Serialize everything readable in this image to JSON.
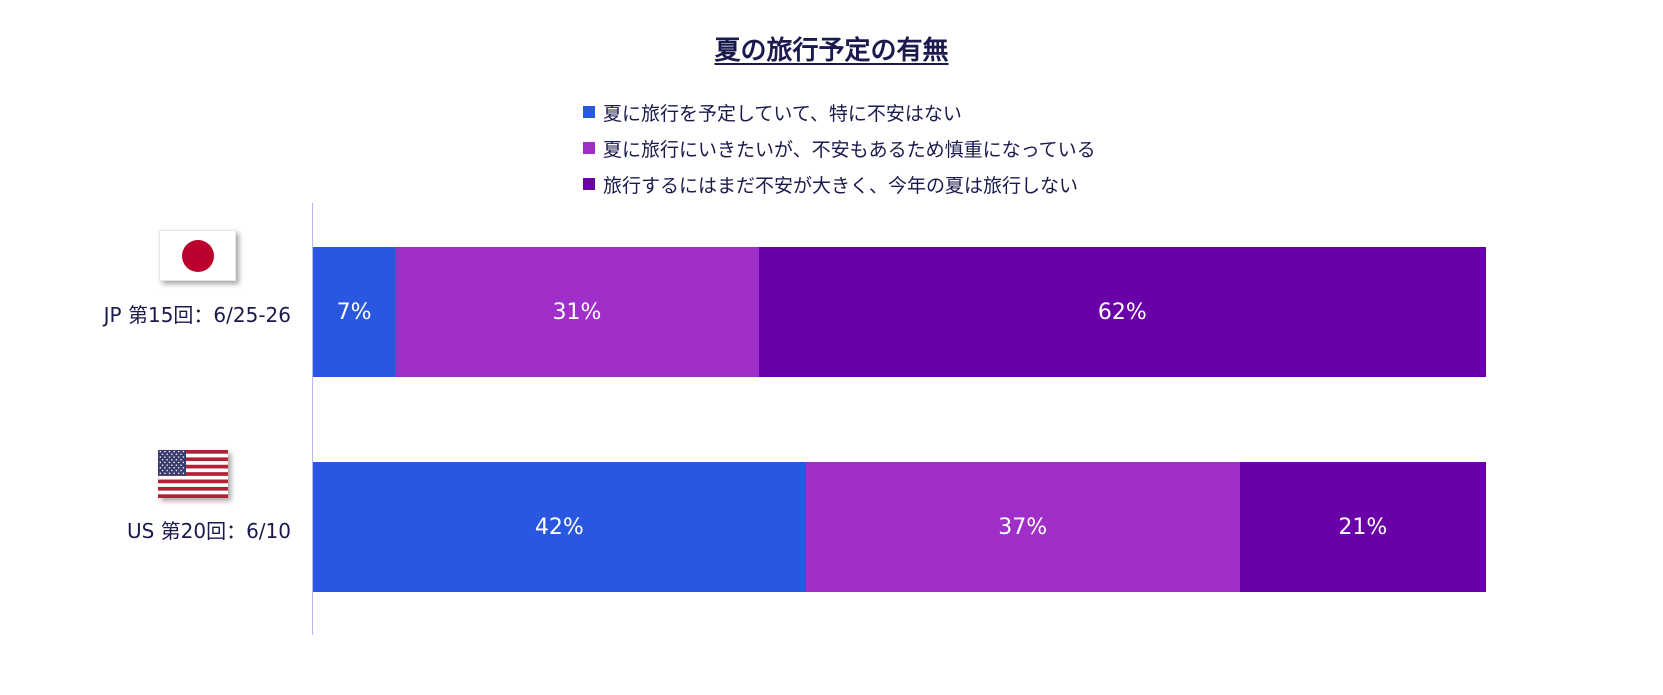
{
  "chart_data": {
    "type": "bar",
    "orientation": "horizontal",
    "stacked": true,
    "title": "夏の旅行予定の有無",
    "categories": [
      "JP 第15回：6/25-26",
      "US 第20回：6/10"
    ],
    "series": [
      {
        "name": "夏に旅行を予定していて、特に不安はない",
        "color": "#2a57e0",
        "values": [
          7,
          42
        ],
        "labels": [
          "7%",
          "42%"
        ]
      },
      {
        "name": "夏に旅行にいきたいが、不安もあるため慎重になっている",
        "color": "#a02ec9",
        "values": [
          31,
          37
        ],
        "labels": [
          "31%",
          "37%"
        ]
      },
      {
        "name": "旅行するにはまだ不安が大きく、今年の夏は旅行しない",
        "color": "#6a00a8",
        "values": [
          62,
          21
        ],
        "labels": [
          "62%",
          "21%"
        ]
      }
    ],
    "xlim": [
      0,
      100
    ],
    "legend_position": "top",
    "grid": false
  },
  "flags": {
    "jp": "japan-flag-icon",
    "us": "us-flag-icon"
  }
}
